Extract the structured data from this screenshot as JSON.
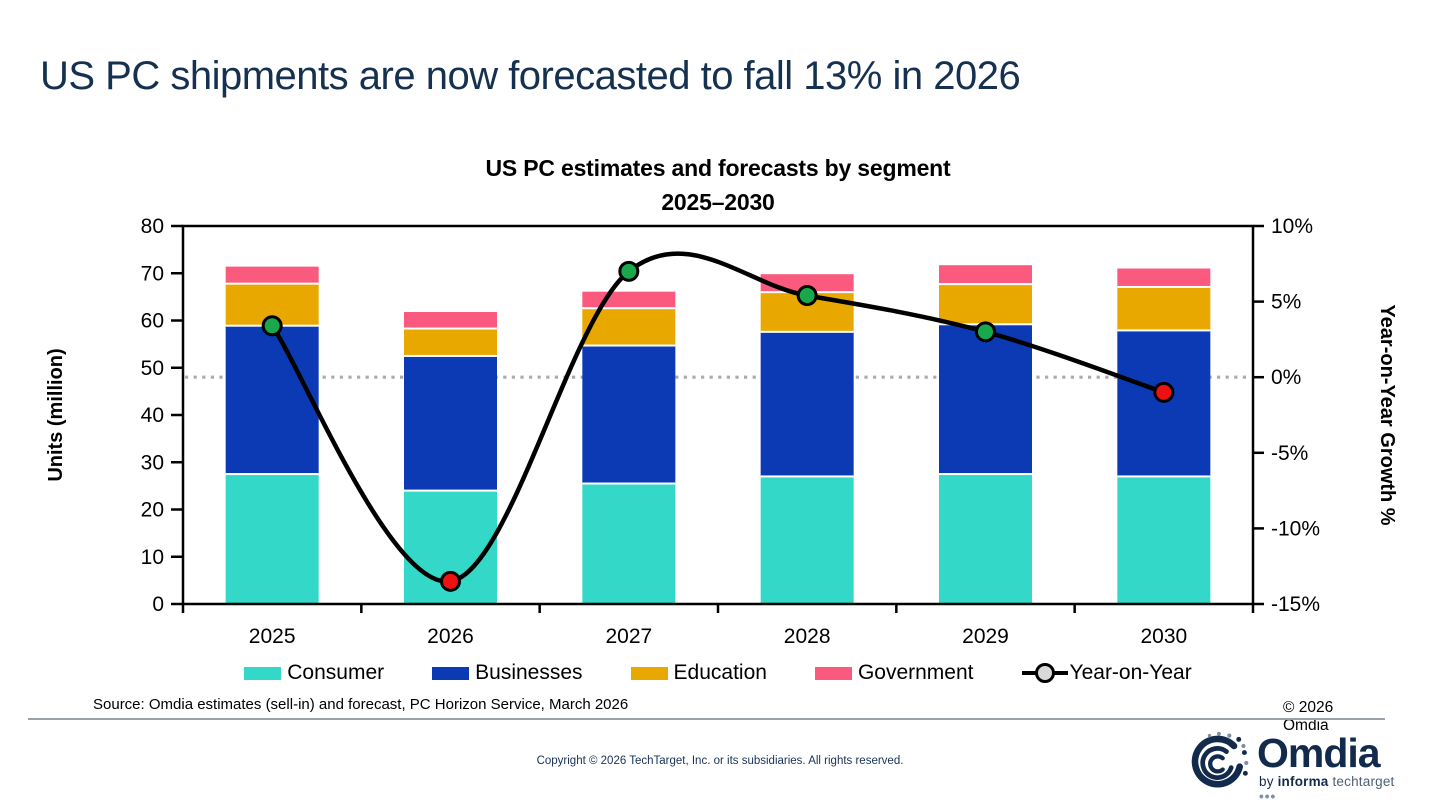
{
  "page": {
    "main_title": "US PC shipments are now forecasted to fall 13% in 2026"
  },
  "chart_data": {
    "type": "bar+line",
    "title": "US PC estimates and forecasts by segment",
    "subtitle": "2025–2030",
    "categories": [
      "2025",
      "2026",
      "2027",
      "2028",
      "2029",
      "2030"
    ],
    "series": [
      {
        "name": "Consumer",
        "color": "#34D8C8",
        "values": [
          27.5,
          24.0,
          25.5,
          27.0,
          27.5,
          27.0
        ]
      },
      {
        "name": "Businesses",
        "color": "#0B3AB4",
        "values": [
          31.4,
          28.5,
          29.2,
          30.6,
          31.7,
          30.9
        ]
      },
      {
        "name": "Education",
        "color": "#E8A800",
        "values": [
          8.9,
          5.8,
          7.9,
          8.4,
          8.5,
          9.2
        ]
      },
      {
        "name": "Government",
        "color": "#FA5A7D",
        "values": [
          3.6,
          3.5,
          3.5,
          3.8,
          4.0,
          3.9
        ]
      }
    ],
    "line_series": {
      "name": "Year-on-Year",
      "values_pct": [
        3.4,
        -13.5,
        7.0,
        5.4,
        3.0,
        -1.0
      ],
      "marker_colors": [
        "#19A84B",
        "#EE1111",
        "#19A84B",
        "#19A84B",
        "#19A84B",
        "#EE1111"
      ],
      "line_color": "#000000"
    },
    "left_axis": {
      "label": "Units (million)",
      "min": 0,
      "max": 80,
      "tick_step": 10,
      "tick_labels": [
        "0",
        "10",
        "20",
        "30",
        "40",
        "50",
        "60",
        "70",
        "80"
      ]
    },
    "right_axis": {
      "label": "Year-on-Year Growth %",
      "min": -15,
      "max": 10,
      "tick_step": 5,
      "tick_labels": [
        "10%",
        "5%",
        "0%",
        "-5%",
        "-10%",
        "-15%"
      ]
    },
    "zero_growth_gridline": {
      "value_pct": 0,
      "style": "dotted",
      "color": "#ABABAB"
    },
    "legend_position": "bottom",
    "grid": "off"
  },
  "footer": {
    "source": "Source: Omdia estimates (sell-in) and forecast, PC Horizon Service, March 2026",
    "copyright_right": "© 2026 Omdia",
    "copyright_center": "Copyright © 2026 TechTarget, Inc. or its subsidiaries. All rights reserved."
  },
  "logo": {
    "name": "Omdia",
    "tagline_by": "by ",
    "tagline_informa": "informa",
    "tagline_techtarget": " techtarget ",
    "tagline_dots": "•••"
  }
}
